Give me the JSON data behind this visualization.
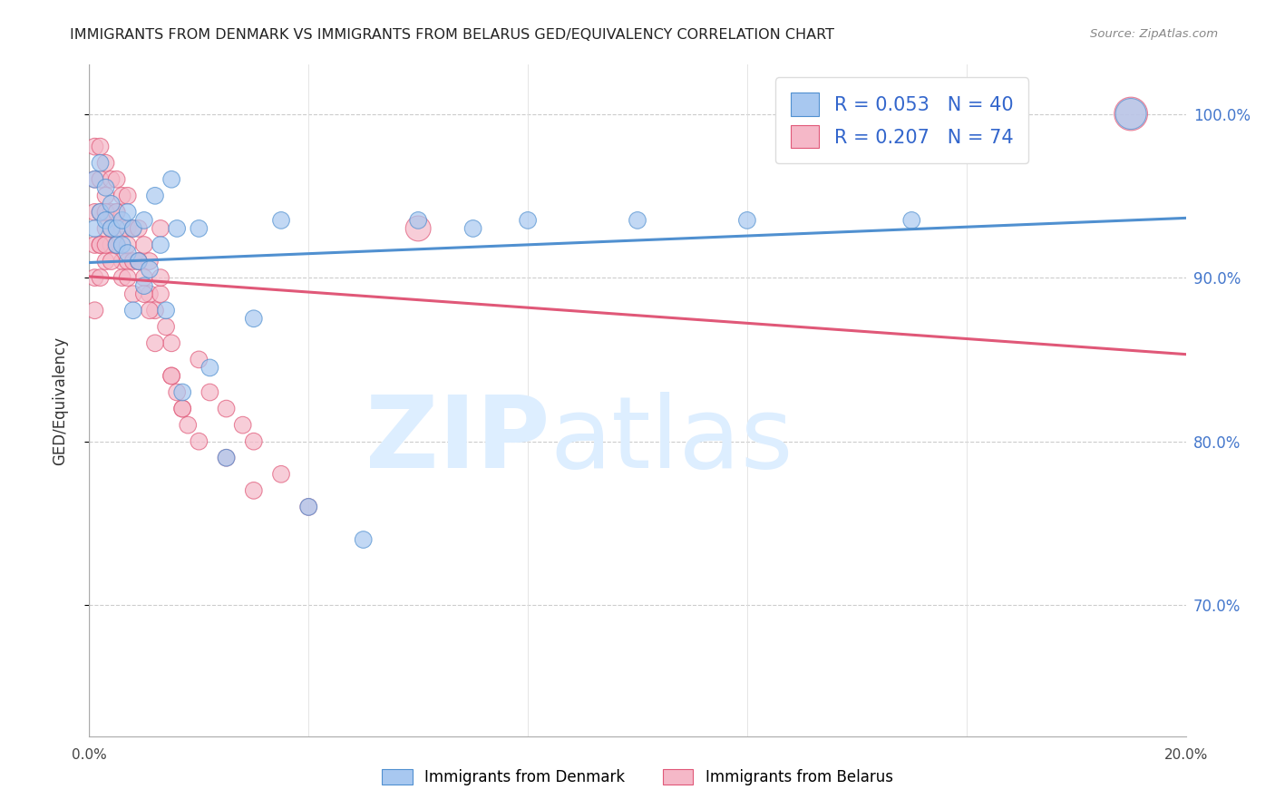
{
  "title": "IMMIGRANTS FROM DENMARK VS IMMIGRANTS FROM BELARUS GED/EQUIVALENCY CORRELATION CHART",
  "source": "Source: ZipAtlas.com",
  "ylabel": "GED/Equivalency",
  "y_tick_labels": [
    "100.0%",
    "90.0%",
    "80.0%",
    "70.0%"
  ],
  "y_tick_values": [
    1.0,
    0.9,
    0.8,
    0.7
  ],
  "xlim": [
    0.0,
    0.2
  ],
  "ylim": [
    0.62,
    1.03
  ],
  "label1": "Immigrants from Denmark",
  "label2": "Immigrants from Belarus",
  "color1": "#a8c8f0",
  "color2": "#f5b8c8",
  "line_color1": "#5090d0",
  "line_color2": "#e05878",
  "watermark_color": "#ddeeff",
  "denmark_x": [
    0.001,
    0.001,
    0.002,
    0.002,
    0.003,
    0.003,
    0.004,
    0.004,
    0.005,
    0.005,
    0.006,
    0.006,
    0.007,
    0.007,
    0.008,
    0.008,
    0.009,
    0.01,
    0.01,
    0.011,
    0.012,
    0.013,
    0.014,
    0.015,
    0.016,
    0.017,
    0.02,
    0.022,
    0.025,
    0.03,
    0.035,
    0.04,
    0.05,
    0.06,
    0.07,
    0.08,
    0.1,
    0.12,
    0.15,
    0.19
  ],
  "denmark_y": [
    0.93,
    0.96,
    0.94,
    0.97,
    0.935,
    0.955,
    0.93,
    0.945,
    0.92,
    0.93,
    0.92,
    0.935,
    0.915,
    0.94,
    0.88,
    0.93,
    0.91,
    0.895,
    0.935,
    0.905,
    0.95,
    0.92,
    0.88,
    0.96,
    0.93,
    0.83,
    0.93,
    0.845,
    0.79,
    0.875,
    0.935,
    0.76,
    0.74,
    0.935,
    0.93,
    0.935,
    0.935,
    0.935,
    0.935,
    1.0
  ],
  "denmark_sizes": [
    180,
    180,
    180,
    180,
    180,
    180,
    180,
    180,
    180,
    180,
    180,
    180,
    180,
    180,
    180,
    180,
    180,
    180,
    180,
    180,
    180,
    180,
    180,
    180,
    180,
    180,
    180,
    180,
    180,
    180,
    180,
    180,
    180,
    180,
    180,
    180,
    180,
    180,
    180,
    600
  ],
  "belarus_x": [
    0.001,
    0.001,
    0.001,
    0.001,
    0.002,
    0.002,
    0.002,
    0.002,
    0.003,
    0.003,
    0.003,
    0.003,
    0.004,
    0.004,
    0.004,
    0.005,
    0.005,
    0.005,
    0.006,
    0.006,
    0.006,
    0.007,
    0.007,
    0.007,
    0.008,
    0.008,
    0.009,
    0.009,
    0.01,
    0.01,
    0.011,
    0.011,
    0.012,
    0.013,
    0.013,
    0.014,
    0.015,
    0.015,
    0.016,
    0.017,
    0.018,
    0.02,
    0.022,
    0.025,
    0.028,
    0.03,
    0.035,
    0.04,
    0.001,
    0.001,
    0.002,
    0.002,
    0.003,
    0.003,
    0.004,
    0.004,
    0.005,
    0.005,
    0.006,
    0.007,
    0.007,
    0.008,
    0.009,
    0.01,
    0.011,
    0.012,
    0.013,
    0.015,
    0.017,
    0.02,
    0.025,
    0.03,
    0.19,
    0.06
  ],
  "belarus_y": [
    0.98,
    0.96,
    0.94,
    0.92,
    0.98,
    0.96,
    0.94,
    0.92,
    0.97,
    0.95,
    0.93,
    0.91,
    0.96,
    0.94,
    0.92,
    0.96,
    0.94,
    0.92,
    0.95,
    0.93,
    0.91,
    0.95,
    0.93,
    0.91,
    0.93,
    0.91,
    0.93,
    0.91,
    0.92,
    0.9,
    0.91,
    0.89,
    0.88,
    0.93,
    0.89,
    0.87,
    0.86,
    0.84,
    0.83,
    0.82,
    0.81,
    0.85,
    0.83,
    0.82,
    0.81,
    0.8,
    0.78,
    0.76,
    0.9,
    0.88,
    0.92,
    0.9,
    0.94,
    0.92,
    0.93,
    0.91,
    0.94,
    0.92,
    0.9,
    0.92,
    0.9,
    0.89,
    0.91,
    0.89,
    0.88,
    0.86,
    0.9,
    0.84,
    0.82,
    0.8,
    0.79,
    0.77,
    1.0,
    0.93
  ],
  "belarus_sizes": [
    180,
    180,
    180,
    180,
    180,
    180,
    180,
    180,
    180,
    180,
    180,
    180,
    180,
    180,
    180,
    180,
    180,
    180,
    180,
    180,
    180,
    180,
    180,
    180,
    180,
    180,
    180,
    180,
    180,
    180,
    180,
    180,
    180,
    180,
    180,
    180,
    180,
    180,
    180,
    180,
    180,
    180,
    180,
    180,
    180,
    180,
    180,
    180,
    180,
    180,
    180,
    180,
    180,
    180,
    180,
    180,
    180,
    180,
    180,
    180,
    180,
    180,
    180,
    180,
    180,
    180,
    180,
    180,
    180,
    180,
    180,
    180,
    700,
    400
  ]
}
